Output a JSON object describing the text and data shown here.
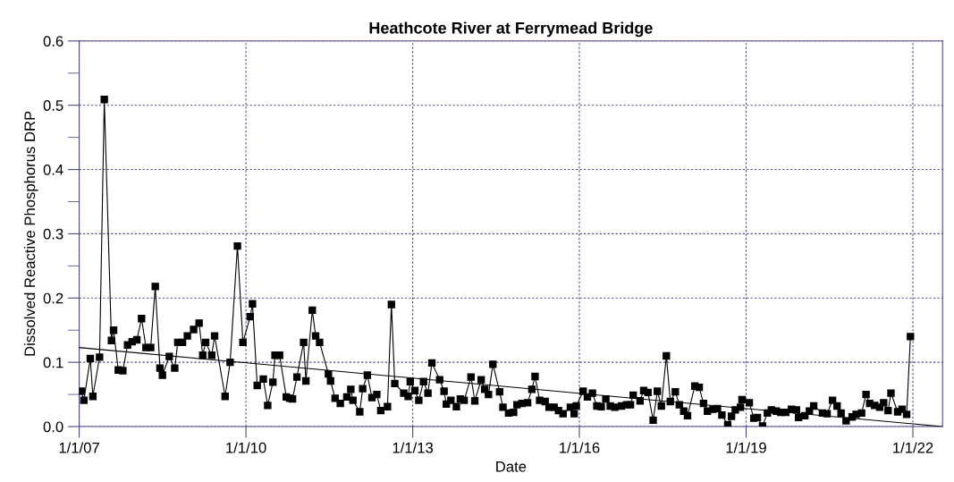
{
  "chart_data": {
    "type": "line",
    "title": "Heathcote River at Ferrymead Bridge",
    "xlabel": "Date",
    "ylabel": "Dissolved Reactive Phosphorus DRP",
    "xlim": [
      "2007-01-01",
      "2022-07-15"
    ],
    "xticks": [
      {
        "value": "2007-01-01",
        "label": "1/1/07"
      },
      {
        "value": "2010-01-01",
        "label": "1/1/10"
      },
      {
        "value": "2013-01-01",
        "label": "1/1/13"
      },
      {
        "value": "2016-01-01",
        "label": "1/1/16"
      },
      {
        "value": "2019-01-01",
        "label": "1/1/19"
      },
      {
        "value": "2022-01-01",
        "label": "1/1/22"
      }
    ],
    "ylim": [
      0,
      0.6
    ],
    "yticks": [
      {
        "value": 0,
        "label": "0.0"
      },
      {
        "value": 0.05,
        "label": null
      },
      0.1,
      {
        "value": 0.15,
        "label": null
      },
      0.2,
      {
        "value": 0.25,
        "label": null
      },
      0.3,
      {
        "value": 0.35,
        "label": null
      },
      0.4,
      {
        "value": 0.45,
        "label": null
      },
      0.5,
      {
        "value": 0.55,
        "label": null
      },
      0.6
    ],
    "grid": true,
    "legend": false,
    "series": [
      {
        "color": "#000000",
        "marker": "square",
        "line_style": "solid",
        "x": [
          "2007-01-15",
          "2007-02-01",
          "2007-03-15",
          "2007-04-01",
          "2007-05-15",
          "2007-06-15",
          "2007-08-01",
          "2007-08-15",
          "2007-09-15",
          "2007-10-15",
          "2007-11-15",
          "2007-12-15",
          "2008-01-15",
          "2008-02-15",
          "2008-03-15",
          "2008-04-15",
          "2008-05-15",
          "2008-06-15",
          "2008-07-01",
          "2008-08-15",
          "2008-09-20",
          "2008-10-10",
          "2008-11-10",
          "2008-12-12",
          "2009-01-22",
          "2009-02-27",
          "2009-03-23",
          "2009-04-11",
          "2009-05-21",
          "2009-06-09",
          "2009-08-17",
          "2009-09-19",
          "2009-11-06",
          "2009-12-12",
          "2010-01-29",
          "2010-02-13",
          "2010-03-16",
          "2010-04-25",
          "2010-05-24",
          "2010-06-27",
          "2010-07-11",
          "2010-08-10",
          "2010-09-23",
          "2010-10-15",
          "2010-11-03",
          "2010-12-02",
          "2011-01-15",
          "2011-01-30",
          "2011-03-13",
          "2011-04-04",
          "2011-04-30",
          "2011-06-27",
          "2011-07-11",
          "2011-08-10",
          "2011-09-13",
          "2011-10-26",
          "2011-11-21",
          "2011-12-05",
          "2012-01-19",
          "2012-02-07",
          "2012-03-09",
          "2012-04-08",
          "2012-05-10",
          "2012-06-05",
          "2012-07-19",
          "2012-08-14",
          "2012-09-05",
          "2012-11-03",
          "2012-12-02",
          "2012-12-16",
          "2013-01-15",
          "2013-02-10",
          "2013-03-13",
          "2013-04-11",
          "2013-05-07",
          "2013-06-27",
          "2013-07-26",
          "2013-08-10",
          "2013-09-09",
          "2013-10-15",
          "2013-11-10",
          "2013-12-05",
          "2014-01-19",
          "2014-02-13",
          "2014-03-27",
          "2014-04-19",
          "2014-05-14",
          "2014-06-12",
          "2014-07-26",
          "2014-08-17",
          "2014-09-23",
          "2014-10-26",
          "2014-11-17",
          "2014-12-20",
          "2015-01-26",
          "2015-02-23",
          "2015-03-16",
          "2015-04-15",
          "2015-05-21",
          "2015-06-16",
          "2015-07-19",
          "2015-08-17",
          "2015-09-16",
          "2015-11-03",
          "2015-11-28",
          "2015-12-12",
          "2016-01-26",
          "2016-02-23",
          "2016-03-27",
          "2016-04-25",
          "2016-05-24",
          "2016-06-23",
          "2016-07-22",
          "2016-08-21",
          "2016-10-04",
          "2016-11-06",
          "2016-12-02",
          "2016-12-20",
          "2017-02-03",
          "2017-02-27",
          "2017-03-27",
          "2017-04-30",
          "2017-05-28",
          "2017-06-23",
          "2017-07-26",
          "2017-08-21",
          "2017-09-23",
          "2017-10-19",
          "2017-11-17",
          "2017-12-12",
          "2018-01-29",
          "2018-02-27",
          "2018-03-27",
          "2018-04-22",
          "2018-05-28",
          "2018-06-27",
          "2018-07-26",
          "2018-09-02",
          "2018-09-27",
          "2018-10-22",
          "2018-11-25",
          "2018-12-05",
          "2019-01-22",
          "2019-02-21",
          "2019-03-16",
          "2019-04-19",
          "2019-05-21",
          "2019-06-16",
          "2019-07-19",
          "2019-08-17",
          "2019-09-19",
          "2019-10-26",
          "2019-11-28",
          "2019-12-12",
          "2020-01-22",
          "2020-02-21",
          "2020-03-20",
          "2020-05-17",
          "2020-06-16",
          "2020-07-22",
          "2020-08-21",
          "2020-09-16",
          "2020-10-19",
          "2020-11-28",
          "2020-12-24",
          "2021-01-29",
          "2021-02-27",
          "2021-03-23",
          "2021-04-25",
          "2021-05-28",
          "2021-06-23",
          "2021-07-22",
          "2021-08-10",
          "2021-09-23",
          "2021-10-22",
          "2021-11-21",
          "2021-12-16"
        ],
        "values": [
          0.055,
          0.041,
          0.106,
          0.047,
          0.108,
          0.509,
          0.134,
          0.15,
          0.088,
          0.087,
          0.127,
          0.132,
          0.135,
          0.168,
          0.123,
          0.123,
          0.218,
          0.091,
          0.08,
          0.109,
          0.091,
          0.131,
          0.131,
          0.141,
          0.151,
          0.161,
          0.111,
          0.131,
          0.111,
          0.141,
          0.047,
          0.1,
          0.281,
          0.131,
          0.171,
          0.191,
          0.064,
          0.074,
          0.033,
          0.069,
          0.111,
          0.111,
          0.046,
          0.044,
          0.043,
          0.077,
          0.131,
          0.071,
          0.181,
          0.141,
          0.131,
          0.082,
          0.071,
          0.044,
          0.036,
          0.046,
          0.058,
          0.041,
          0.023,
          0.059,
          0.08,
          0.045,
          0.05,
          0.025,
          0.031,
          0.19,
          0.067,
          0.052,
          0.047,
          0.07,
          0.056,
          0.041,
          0.07,
          0.052,
          0.099,
          0.073,
          0.055,
          0.035,
          0.041,
          0.031,
          0.043,
          0.041,
          0.077,
          0.04,
          0.073,
          0.058,
          0.05,
          0.097,
          0.054,
          0.03,
          0.021,
          0.022,
          0.034,
          0.036,
          0.037,
          0.058,
          0.078,
          0.041,
          0.039,
          0.03,
          0.03,
          0.025,
          0.02,
          0.03,
          0.02,
          0.032,
          0.055,
          0.046,
          0.052,
          0.032,
          0.031,
          0.043,
          0.032,
          0.03,
          0.032,
          0.034,
          0.034,
          0.049,
          0.04,
          0.056,
          0.053,
          0.01,
          0.055,
          0.032,
          0.11,
          0.039,
          0.054,
          0.034,
          0.024,
          0.017,
          0.063,
          0.061,
          0.036,
          0.024,
          0.027,
          0.028,
          0.018,
          0.003,
          0.016,
          0.026,
          0.03,
          0.042,
          0.037,
          0.013,
          0.014,
          0.001,
          0.021,
          0.026,
          0.024,
          0.022,
          0.022,
          0.027,
          0.026,
          0.014,
          0.017,
          0.024,
          0.032,
          0.021,
          0.02,
          0.041,
          0.032,
          0.021,
          0.009,
          0.015,
          0.019,
          0.021,
          0.05,
          0.036,
          0.033,
          0.03,
          0.037,
          0.025,
          0.052,
          0.023,
          0.027,
          0.019,
          0.14
        ]
      },
      {
        "color": "#000000",
        "marker": "none",
        "line_style": "solid",
        "x": [
          "2007-01-01",
          "2022-07-12"
        ],
        "values": [
          0.123,
          0.0
        ]
      }
    ]
  }
}
